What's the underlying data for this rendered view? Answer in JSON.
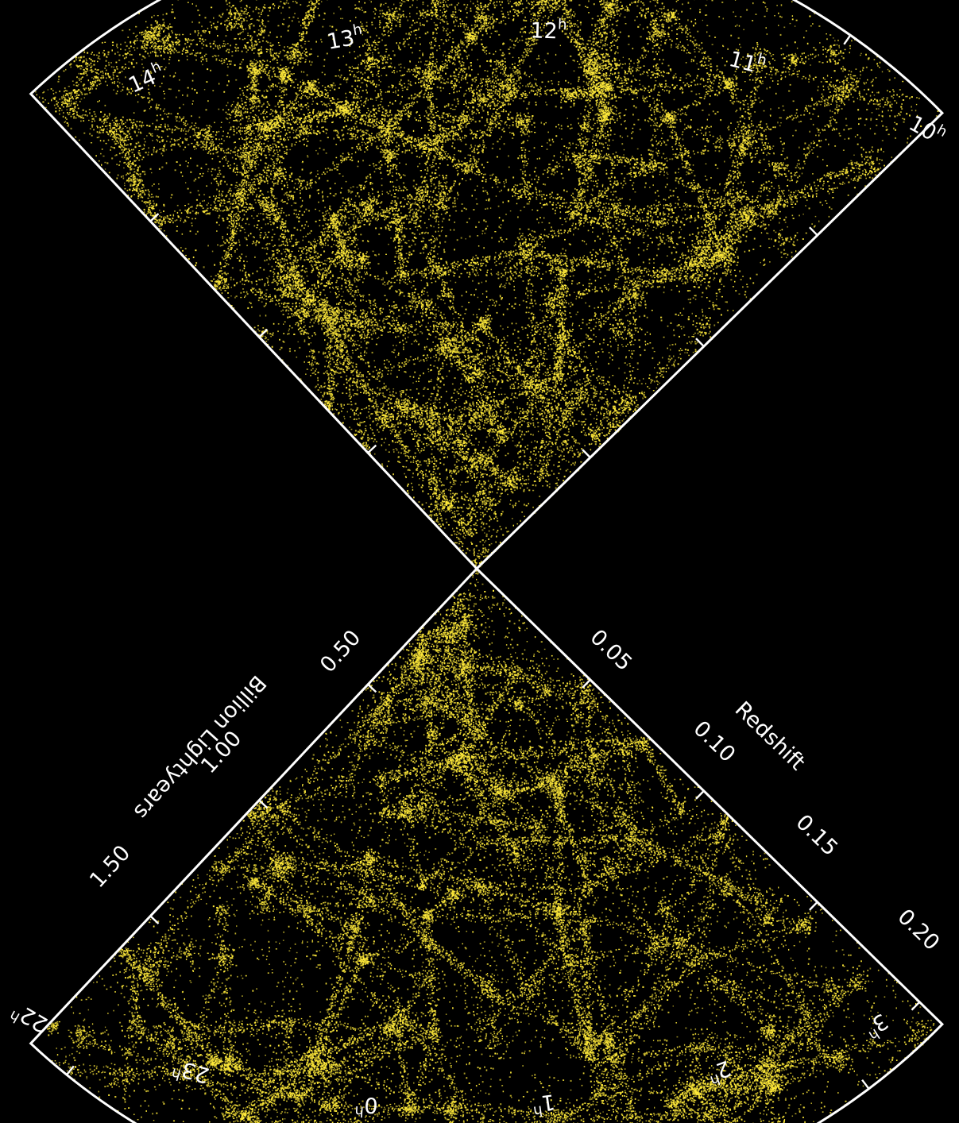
{
  "chart_data": {
    "type": "scatter",
    "title": "",
    "colors": {
      "background": "#000000",
      "points": "#ffea3a",
      "frame": "#ffffff"
    },
    "upper_wedge": {
      "ra_labels": [
        {
          "hour": "14",
          "suffix": "h"
        },
        {
          "hour": "13",
          "suffix": "h"
        },
        {
          "hour": "12",
          "suffix": "h"
        },
        {
          "hour": "11",
          "suffix": "h"
        },
        {
          "hour": "10",
          "suffix": "h"
        }
      ]
    },
    "lower_wedge": {
      "ra_labels": [
        {
          "hour": "22",
          "suffix": "h"
        },
        {
          "hour": "23",
          "suffix": "h"
        },
        {
          "hour": "0",
          "suffix": "h"
        },
        {
          "hour": "1",
          "suffix": "h"
        },
        {
          "hour": "2",
          "suffix": "h"
        },
        {
          "hour": "3",
          "suffix": "h"
        }
      ],
      "distance_axis": {
        "title": "Billion Lightyears",
        "ticks": [
          "0.50",
          "1.00",
          "1.50"
        ]
      },
      "redshift_axis": {
        "title": "Redshift",
        "ticks": [
          "0.05",
          "0.10",
          "0.15",
          "0.20"
        ]
      }
    }
  }
}
